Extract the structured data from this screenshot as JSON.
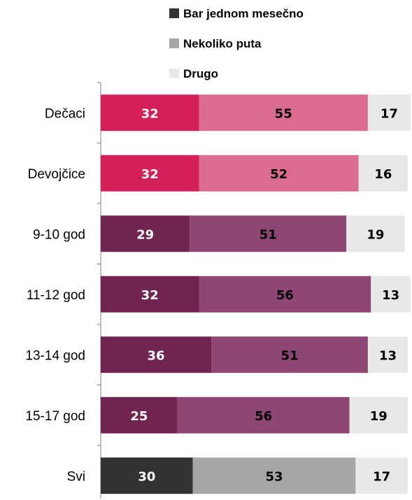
{
  "chart_data": {
    "type": "bar",
    "orientation": "horizontal",
    "stacked": true,
    "xlim": [
      0,
      100
    ],
    "grid": false,
    "legend_position": "top",
    "categories": [
      "Dečaci",
      "Devojčice",
      "9-10 god",
      "11-12 god",
      "13-14 god",
      "15-17 god",
      "Svi"
    ],
    "series": [
      {
        "name": "Bar jednom mesečno",
        "values": [
          32,
          32,
          29,
          32,
          36,
          25,
          30
        ]
      },
      {
        "name": "Nekoliko puta",
        "values": [
          55,
          52,
          51,
          56,
          51,
          56,
          53
        ]
      },
      {
        "name": "Drugo",
        "values": [
          17,
          16,
          19,
          13,
          13,
          19,
          17
        ]
      }
    ],
    "legend_colors": [
      "#333333",
      "#A6A6A6",
      "#E8E8E8"
    ],
    "bar_colors": [
      [
        "#D42058",
        "#DB6B8F",
        "#E8E8E8"
      ],
      [
        "#D42058",
        "#DB6B8F",
        "#E8E8E8"
      ],
      [
        "#712450",
        "#8E4674",
        "#E8E8E8"
      ],
      [
        "#712450",
        "#8E4674",
        "#E8E8E8"
      ],
      [
        "#712450",
        "#8E4674",
        "#E8E8E8"
      ],
      [
        "#712450",
        "#8E4674",
        "#E8E8E8"
      ],
      [
        "#333333",
        "#A6A6A6",
        "#E8E8E8"
      ]
    ],
    "label_colors": [
      "#FFFFFF",
      "#000000",
      "#000000"
    ]
  }
}
